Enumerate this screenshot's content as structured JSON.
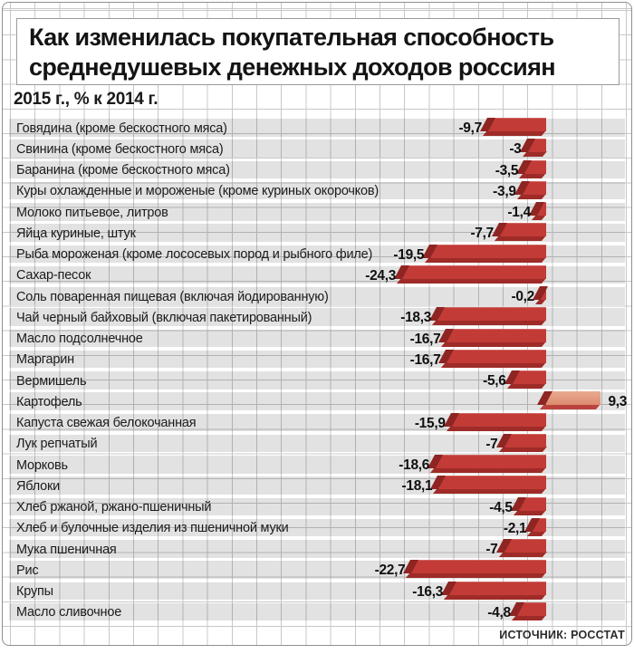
{
  "header": {
    "title_line1": "Как изменилась покупательная способность",
    "title_line2": "среднедушевых денежных доходов россиян",
    "subtitle": "2015 г., % к 2014 г."
  },
  "source": "ИСТОЧНИК: РОССТАТ",
  "chart_data": {
    "type": "bar",
    "orientation": "horizontal",
    "title": "Как изменилась покупательная способность среднедушевых денежных доходов россиян",
    "subtitle": "2015 г., % к 2014 г.",
    "unit": "%",
    "xlim": [
      -25,
      10
    ],
    "baseline": 0,
    "legend": "none",
    "grid": "graph-paper background",
    "categories": [
      "Говядина (кроме бескостного мяса)",
      "Свинина (кроме бескостного мяса)",
      "Баранина (кроме бескостного мяса)",
      "Куры охлажденные и мороженые (кроме куриных окорочков)",
      "Молоко питьевое, литров",
      "Яйца куриные, штук",
      "Рыба мороженая (кроме лососевых пород и рыбного филе)",
      "Сахар-песок",
      "Соль поваренная пищевая (включая йодированную)",
      "Чай черный байховый (включая пакетированный)",
      "Масло подсолнечное",
      "Маргарин",
      "Вермишель",
      "Картофель",
      "Капуста свежая белокочанная",
      "Лук репчатый",
      "Морковь",
      "Яблоки",
      "Хлеб ржаной, ржано-пшеничный",
      "Хлеб и булочные изделия из пшеничной муки",
      "Мука пшеничная",
      "Рис",
      "Крупы",
      "Масло сливочное"
    ],
    "values": [
      -9.7,
      -3,
      -3.5,
      -3.9,
      -1.4,
      -7.7,
      -19.5,
      -24.3,
      -0.2,
      -18.3,
      -16.7,
      -16.7,
      -5.6,
      9.3,
      -15.9,
      -7,
      -18.6,
      -18.1,
      -4.5,
      -2.1,
      -7,
      -22.7,
      -16.3,
      -4.8
    ],
    "value_labels": [
      "-9,7",
      "-3",
      "-3,5",
      "-3,9",
      "-1,4",
      "-7,7",
      "-19,5",
      "-24,3",
      "-0,2",
      "-18,3",
      "-16,7",
      "-16,7",
      "-5,6",
      "9,3",
      "-15,9",
      "-7",
      "-18,6",
      "-18,1",
      "-4,5",
      "-2,1",
      "-7",
      "-22,7",
      "-16,3",
      "-4,8"
    ],
    "colors": {
      "negative_bar": "#c23b37",
      "negative_shade": "#8e2522",
      "positive_bar": "#dd8b6f",
      "positive_shade": "#bc433d",
      "row_band": "#e2e2e2",
      "grid_line": "#c8c8c8"
    }
  }
}
